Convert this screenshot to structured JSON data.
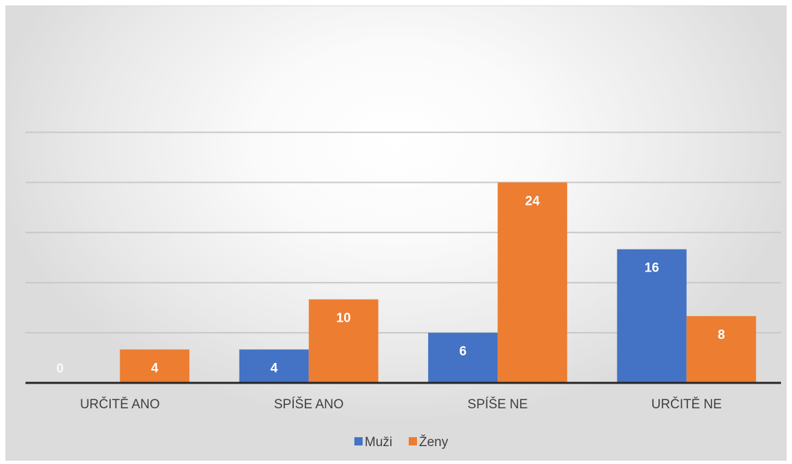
{
  "chart_data": {
    "type": "bar",
    "title": "",
    "xlabel": "",
    "ylabel": "",
    "categories": [
      "URČITĚ ANO",
      "SPÍŠE ANO",
      "SPÍŠE NE",
      "URČITĚ NE"
    ],
    "series": [
      {
        "name": "Muži",
        "color": "#4472C4",
        "values": [
          0,
          4,
          6,
          16
        ]
      },
      {
        "name": "Ženy",
        "color": "#ED7D31",
        "values": [
          4,
          10,
          24,
          8
        ]
      }
    ],
    "ylim": [
      0,
      30
    ],
    "y_axis_labels_visible": false,
    "grid": true,
    "legend": "bottom",
    "data_labels": true
  }
}
